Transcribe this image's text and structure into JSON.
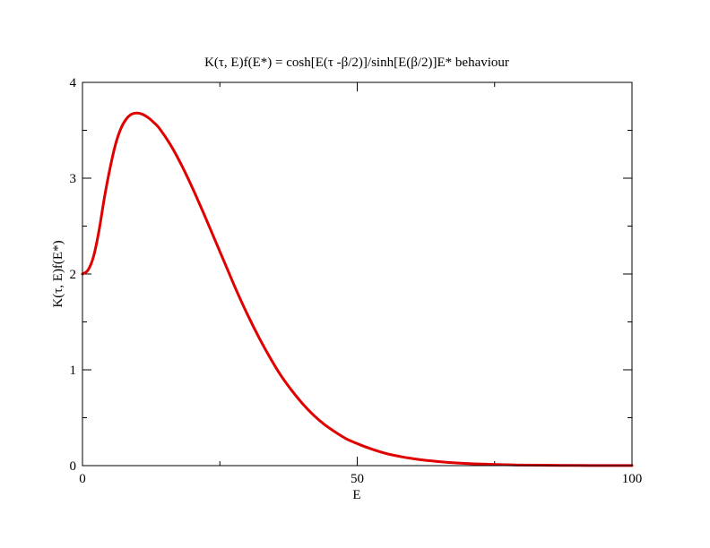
{
  "chart_data": {
    "type": "line",
    "title": "K(τ, E)f(E*) = cosh[E(τ -β/2)]/sinh[E(β/2)]E* behaviour",
    "xlabel": "E",
    "ylabel": "K(τ, E)f(E*)",
    "xlim": [
      0,
      100
    ],
    "ylim": [
      0,
      4
    ],
    "x_ticks": [
      0,
      50,
      100
    ],
    "x_minor_ticks": [
      25,
      75
    ],
    "y_ticks": [
      0,
      1,
      2,
      3,
      4
    ],
    "y_minor_ticks": [
      0.5,
      1.5,
      2.5,
      3.5
    ],
    "x_tick_labels": [
      "0",
      "50",
      "100"
    ],
    "y_tick_labels": [
      "0",
      "1",
      "2",
      "3",
      "4"
    ],
    "grid": false,
    "series": [
      {
        "color": "#e00000",
        "x": [
          0,
          1,
          2,
          3,
          4,
          5,
          6,
          7,
          8,
          9,
          10,
          11,
          12,
          13,
          14,
          16,
          18,
          20,
          22,
          24,
          26,
          28,
          30,
          32,
          34,
          36,
          38,
          40,
          42,
          44,
          46,
          48,
          50,
          52,
          55,
          58,
          60,
          62,
          65,
          68,
          70,
          72,
          75,
          78,
          80,
          85,
          90,
          95,
          100
        ],
        "y": [
          2.0,
          2.04,
          2.18,
          2.45,
          2.8,
          3.1,
          3.35,
          3.52,
          3.62,
          3.67,
          3.68,
          3.665,
          3.63,
          3.58,
          3.52,
          3.35,
          3.14,
          2.9,
          2.64,
          2.37,
          2.1,
          1.83,
          1.58,
          1.35,
          1.14,
          0.95,
          0.79,
          0.65,
          0.53,
          0.43,
          0.35,
          0.28,
          0.23,
          0.185,
          0.13,
          0.093,
          0.074,
          0.058,
          0.041,
          0.028,
          0.022,
          0.017,
          0.012,
          0.008,
          0.006,
          0.0035,
          0.002,
          0.0012,
          0.0007
        ]
      }
    ]
  }
}
